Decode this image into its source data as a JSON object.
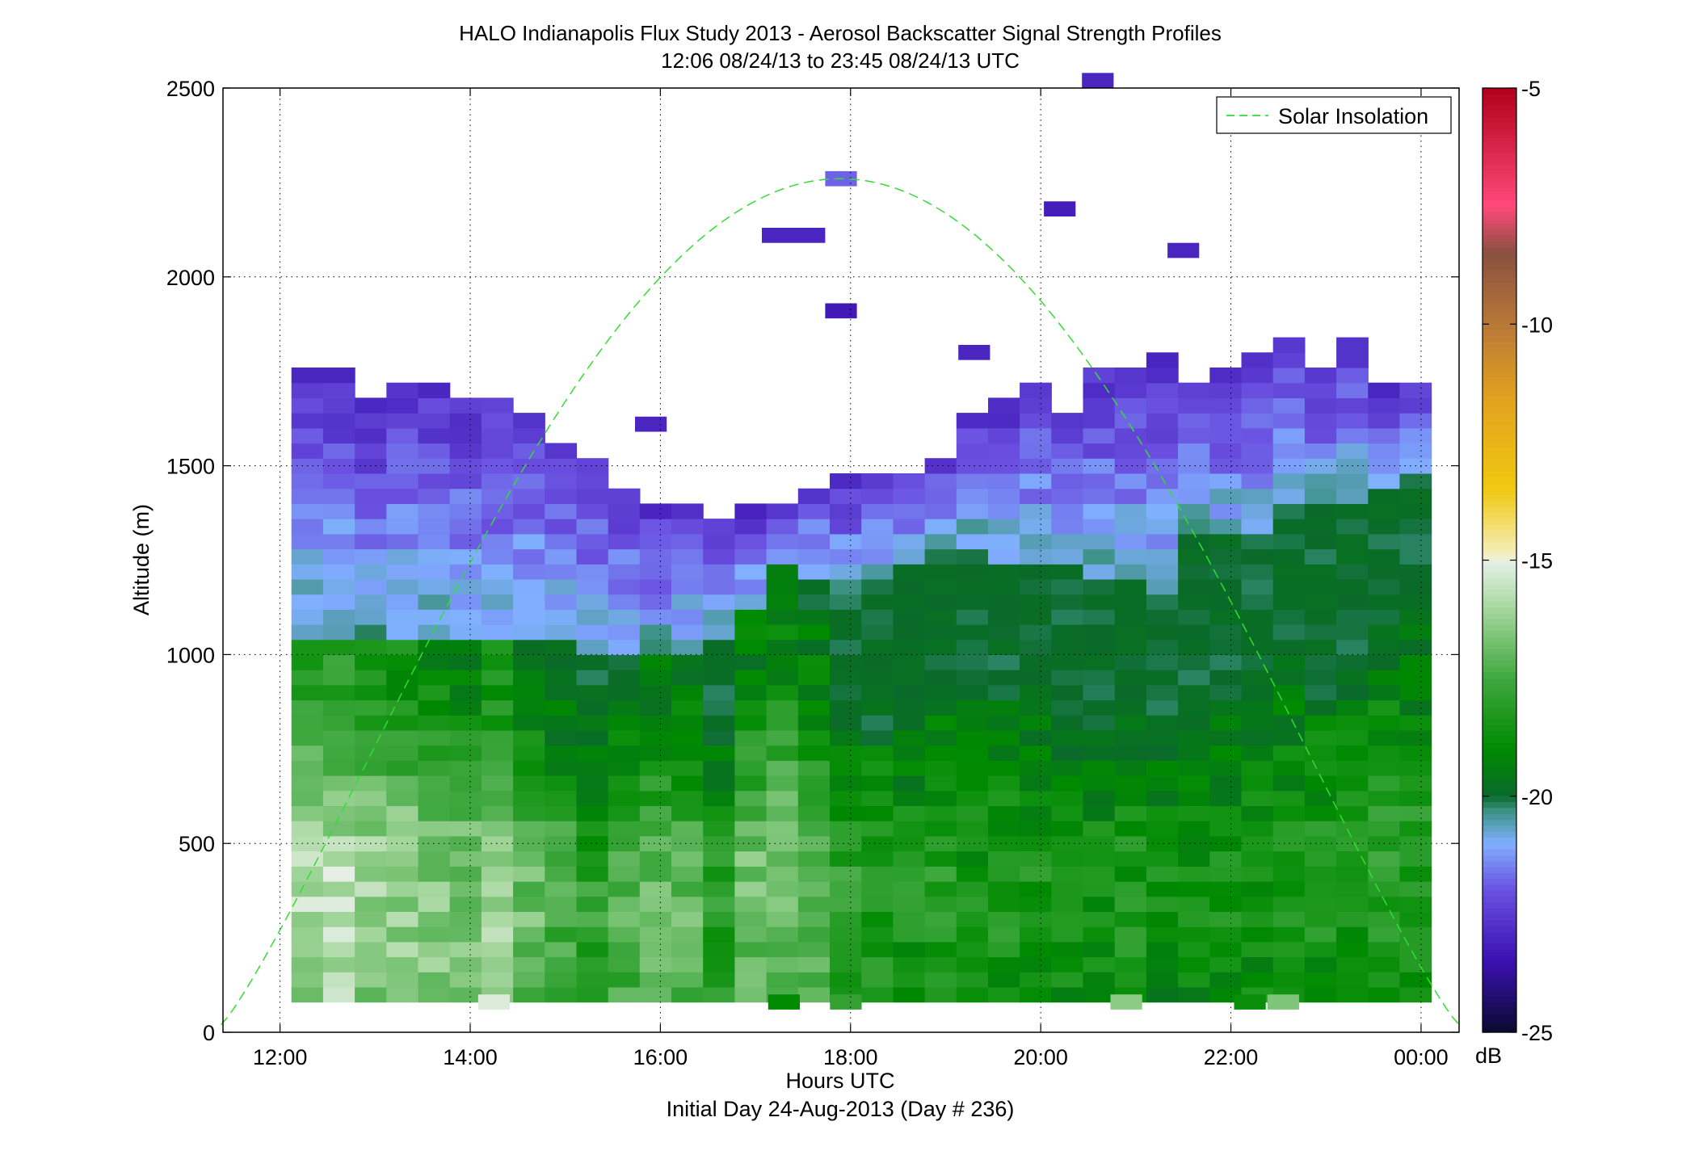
{
  "title": {
    "line1": "HALO Indianapolis Flux Study 2013 - Aerosol Backscatter Signal Strength Profiles",
    "line2": "12:06 08/24/13 to 23:45 08/24/13  UTC"
  },
  "xaxis": {
    "label": "Hours UTC",
    "sublabel": "Initial Day 24-Aug-2013 (Day # 236)",
    "tick_labels": [
      "12:00",
      "14:00",
      "16:00",
      "18:00",
      "20:00",
      "22:00",
      "00:00"
    ]
  },
  "yaxis": {
    "label": "Altitude (m)",
    "tick_labels": [
      "0",
      "500",
      "1000",
      "1500",
      "2000",
      "2500"
    ]
  },
  "colorbar": {
    "unit_label": "dB",
    "tick_labels": [
      "-5",
      "-10",
      "-15",
      "-20",
      "-25"
    ]
  },
  "legend": {
    "entry": "Solar Insolation"
  },
  "colors": {
    "axis": "#000000",
    "grid_dots": "#000000",
    "solar_line": "#33dd33"
  },
  "chart_data": {
    "type": "heatmap",
    "title": "HALO Indianapolis Flux Study 2013 - Aerosol Backscatter Signal Strength Profiles",
    "subtitle": "12:06 08/24/13 to 23:45 08/24/13  UTC",
    "xlabel": "Hours UTC",
    "ylabel": "Altitude (m)",
    "colorbar_label": "dB",
    "x_range_hours": [
      11.4,
      24.4
    ],
    "y_range_m": [
      0,
      2500
    ],
    "x_ticks_hours": [
      12,
      14,
      16,
      18,
      20,
      22,
      24
    ],
    "y_ticks_m": [
      0,
      500,
      1000,
      1500,
      2000,
      2500
    ],
    "color_range_db": [
      -25,
      -5
    ],
    "colormap_stops": [
      {
        "db": -25.0,
        "color": "#0a0a30"
      },
      {
        "db": -23.5,
        "color": "#3a10b0"
      },
      {
        "db": -22.0,
        "color": "#6a50e0"
      },
      {
        "db": -21.0,
        "color": "#80b0ff"
      },
      {
        "db": -20.3,
        "color": "#3a9080"
      },
      {
        "db": -20.0,
        "color": "#0a6a2a"
      },
      {
        "db": -19.0,
        "color": "#008a00"
      },
      {
        "db": -17.5,
        "color": "#40a840"
      },
      {
        "db": -16.0,
        "color": "#a8d8a0"
      },
      {
        "db": -15.0,
        "color": "#e8f0e8"
      },
      {
        "db": -14.9,
        "color": "#f4f0c0"
      },
      {
        "db": -13.5,
        "color": "#f0c810"
      },
      {
        "db": -11.5,
        "color": "#e0a020"
      },
      {
        "db": -10.0,
        "color": "#b87838"
      },
      {
        "db": -8.5,
        "color": "#8a5040"
      },
      {
        "db": -7.5,
        "color": "#ff4a7a"
      },
      {
        "db": -5.0,
        "color": "#b0001a"
      }
    ],
    "column_start_hour": 12.12,
    "column_width_hours": 0.333,
    "row_bottom_m": 80,
    "row_height_m": 40,
    "top_of_signal_m": [
      1760,
      1760,
      1680,
      1720,
      1720,
      1680,
      1680,
      1640,
      1560,
      1520,
      1440,
      1400,
      1400,
      1340,
      1380,
      1400,
      1440,
      1480,
      1480,
      1480,
      1520,
      1640,
      1680,
      1720,
      1640,
      1760,
      1760,
      1800,
      1720,
      1760,
      1800,
      1840,
      1760,
      1840,
      1720,
      1720
    ],
    "aerosol_layer_top_m": [
      1040,
      1040,
      1040,
      1040,
      1040,
      1040,
      1040,
      1040,
      1040,
      1000,
      1000,
      1000,
      1000,
      1040,
      1100,
      1220,
      1180,
      1130,
      1180,
      1220,
      1260,
      1280,
      1240,
      1220,
      1220,
      1180,
      1180,
      1150,
      1300,
      1300,
      1300,
      1400,
      1380,
      1380,
      1420,
      1480
    ],
    "near_surface_strength_db": [
      -16.2,
      -16.0,
      -16.5,
      -16.6,
      -16.8,
      -17.0,
      -16.6,
      -17.2,
      -17.8,
      -18.3,
      -17.6,
      -17.4,
      -17.4,
      -18.4,
      -17.2,
      -17.3,
      -17.6,
      -18.4,
      -18.6,
      -18.8,
      -18.6,
      -18.9,
      -18.7,
      -18.8,
      -18.9,
      -19.0,
      -18.8,
      -19.0,
      -19.1,
      -19.0,
      -18.9,
      -18.9,
      -18.8,
      -18.7,
      -18.5,
      -18.6
    ],
    "isolated_cells": [
      {
        "x_hour": 17.9,
        "alt_m": 2240,
        "db": -21.8
      },
      {
        "x_hour": 17.4,
        "alt_m": 2090,
        "db": -23.0
      },
      {
        "x_hour": 17.9,
        "alt_m": 1890,
        "db": -23.3
      },
      {
        "x_hour": 20.2,
        "alt_m": 2160,
        "db": -23.2
      },
      {
        "x_hour": 21.5,
        "alt_m": 2050,
        "db": -23.0
      },
      {
        "x_hour": 19.3,
        "alt_m": 1780,
        "db": -23.0
      },
      {
        "x_hour": 15.9,
        "alt_m": 1590,
        "db": -23.0
      },
      {
        "x_hour": 20.6,
        "alt_m": 2500,
        "db": -23.0
      },
      {
        "x_hour": 17.3,
        "alt_m": 60,
        "db": -19.0
      },
      {
        "x_hour": 17.95,
        "alt_m": 60,
        "db": -17.8
      },
      {
        "x_hour": 20.9,
        "alt_m": 60,
        "db": -16.4
      },
      {
        "x_hour": 22.2,
        "alt_m": 60,
        "db": -18.8
      },
      {
        "x_hour": 22.55,
        "alt_m": 60,
        "db": -16.6
      },
      {
        "x_hour": 14.25,
        "alt_m": 60,
        "db": -15.2
      }
    ],
    "solar_insolation": {
      "series_name": "Solar Insolation",
      "peak_hour": 17.9,
      "peak_alt_m": 2240,
      "zero_hours": [
        11.38,
        24.4
      ],
      "style": "dashed"
    },
    "legend_position": "top-right",
    "grid": "dotted"
  }
}
